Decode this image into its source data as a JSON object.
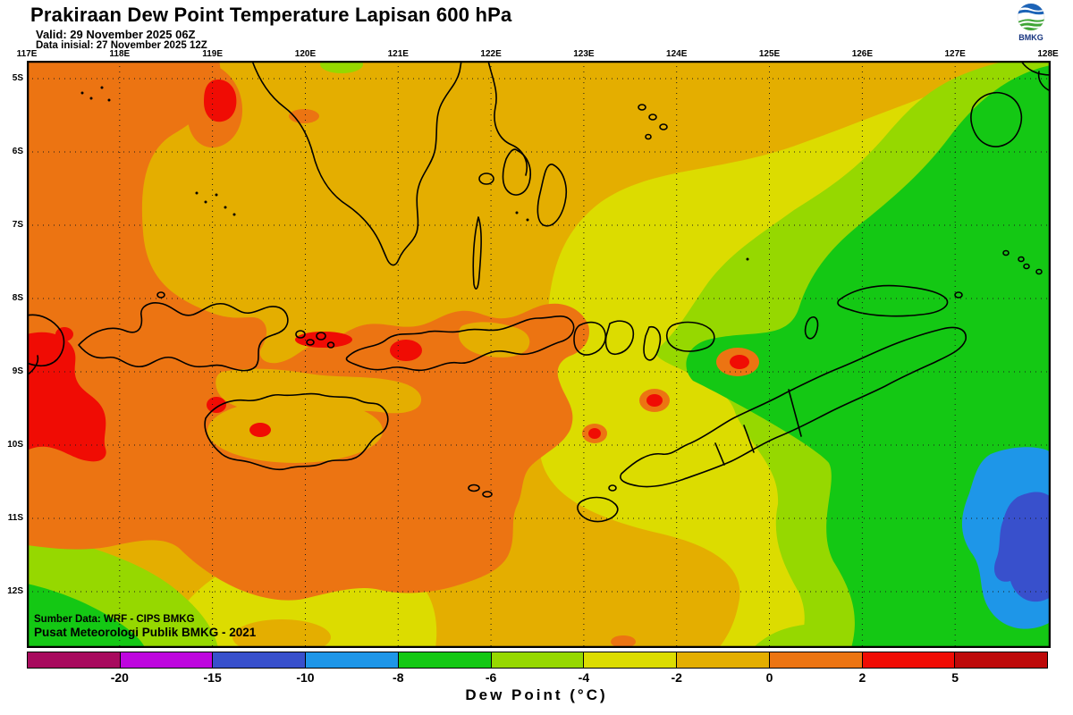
{
  "header": {
    "title": "Prakiraan Dew Point Temperature Lapisan 600 hPa",
    "valid": "Valid: 29 November 2025 06Z",
    "init": "Data inisial: 27 November 2025 12Z",
    "logo_label": "BMKG"
  },
  "map": {
    "lon_labels": [
      "117E",
      "118E",
      "119E",
      "120E",
      "121E",
      "122E",
      "123E",
      "124E",
      "125E",
      "126E",
      "127E",
      "128E"
    ],
    "lat_labels": [
      "5S",
      "6S",
      "7S",
      "8S",
      "9S",
      "10S",
      "11S",
      "12S"
    ],
    "credit_line1": "Sumber Data: WRF - CIPS BMKG",
    "credit_line2": "Pusat Meteorologi Publik BMKG - 2021"
  },
  "colorbar": {
    "title": "Dew Point (°C)",
    "tick_labels": [
      "-20",
      "-15",
      "-10",
      "-8",
      "-6",
      "-4",
      "-2",
      "0",
      "2",
      "5"
    ],
    "segment_colors": [
      "#A80A5E",
      "#BE06DE",
      "#3850CC",
      "#1E96E8",
      "#14C814",
      "#96D800",
      "#DCDC00",
      "#E4AE00",
      "#EC7412",
      "#F00C04",
      "#BE0A0A"
    ]
  },
  "chart_data": {
    "type": "heatmap",
    "title": "Prakiraan Dew Point Temperature Lapisan 600 hPa",
    "variable": "Dew Point (°C)",
    "level_hPa": 600,
    "x_range_lon": [
      "117E",
      "128E"
    ],
    "y_range_lat": [
      "5S",
      "12S"
    ],
    "scale_boundaries_degC": [
      -20,
      -15,
      -10,
      -8,
      -6,
      -4,
      -2,
      0,
      2,
      5
    ],
    "scale_colors": [
      "#A80A5E",
      "#BE06DE",
      "#3850CC",
      "#1E96E8",
      "#14C814",
      "#96D800",
      "#DCDC00",
      "#E4AE00",
      "#EC7412",
      "#F00C04",
      "#BE0A0A"
    ],
    "legend_position": "bottom",
    "grid": "dotted 1-degree graticule"
  }
}
